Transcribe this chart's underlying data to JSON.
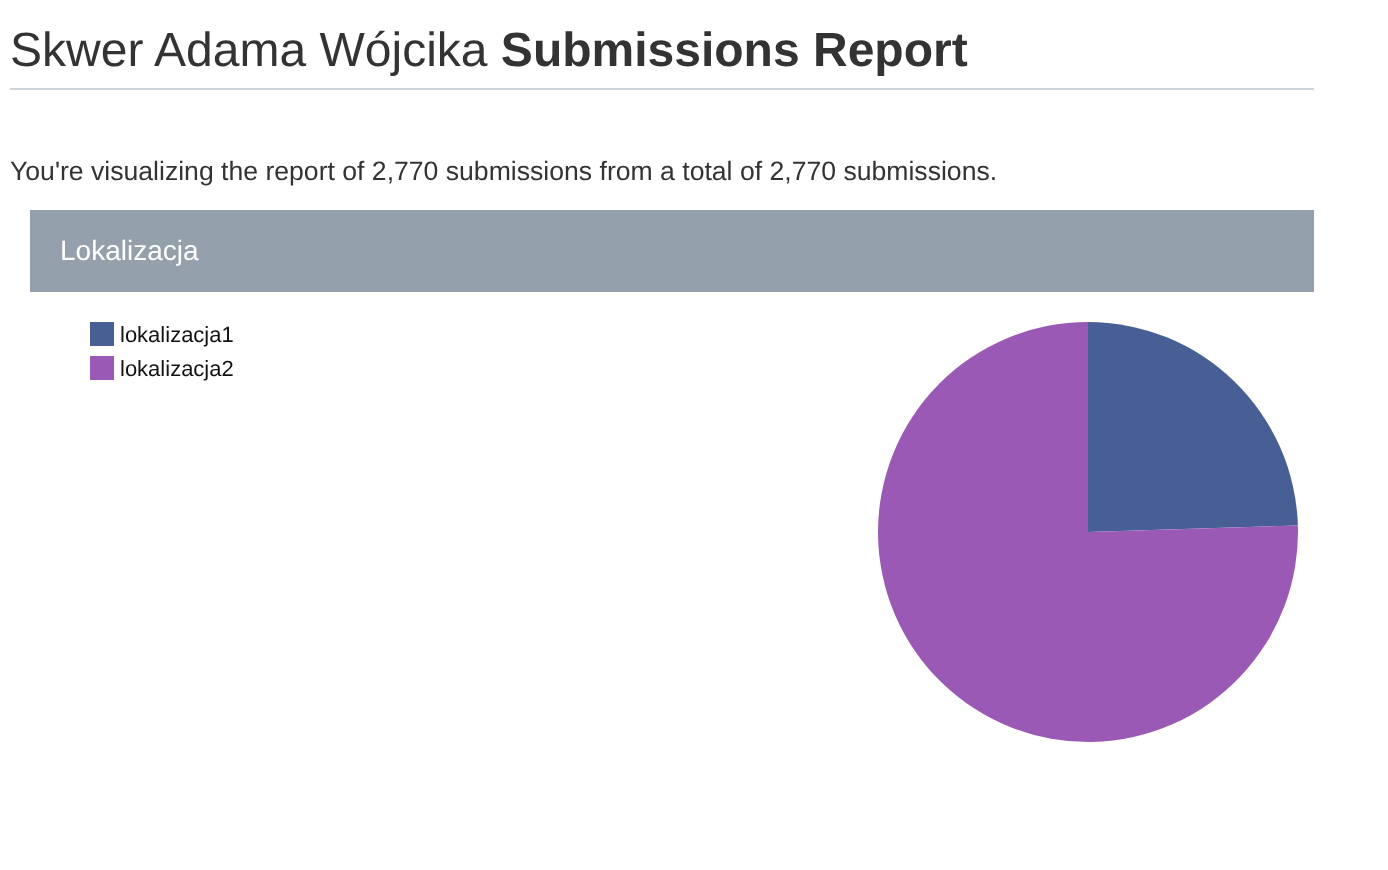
{
  "chart_data": {
    "type": "pie",
    "title": "Skwer Adama Wójcika Submissions Report",
    "subtitle": "You're visualizing the report of 2,770 submissions from a total of 2,770 submissions.",
    "annotations": [
      "Lokalizacja"
    ],
    "categories": [
      "lokalizacja1",
      "lokalizacja2"
    ],
    "values": [
      24.5,
      75.5
    ],
    "colors": [
      "#485f96",
      "#9b59b6"
    ],
    "legend": "top left"
  }
}
